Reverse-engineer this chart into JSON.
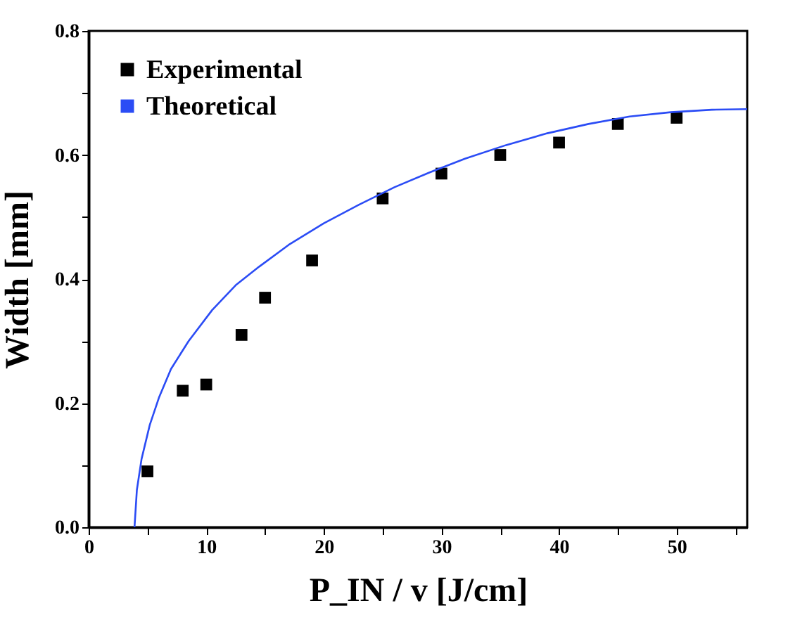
{
  "chart_data": {
    "type": "scatter",
    "xlabel": "P_IN / v [J/cm]",
    "ylabel": "Width [mm]",
    "xlim": [
      0,
      56
    ],
    "ylim": [
      0,
      0.8
    ],
    "xticks": [
      0,
      {
        "value": 5,
        "label": null
      },
      10,
      {
        "value": 15,
        "label": null
      },
      20,
      {
        "value": 25,
        "label": null
      },
      30,
      {
        "value": 35,
        "label": null
      },
      40,
      {
        "value": 45,
        "label": null
      },
      50,
      {
        "value": 55,
        "label": null
      }
    ],
    "yticks": [
      {
        "value": 0,
        "label": "0.0"
      },
      {
        "value": 0.1,
        "label": null
      },
      0.2,
      {
        "value": 0.3,
        "label": null
      },
      0.4,
      {
        "value": 0.5,
        "label": null
      },
      0.6,
      {
        "value": 0.7,
        "label": null
      },
      0.8
    ],
    "legend": "top left",
    "grid": false,
    "marker": "square",
    "series": [
      {
        "name": "Experimental",
        "color": "#000000",
        "x": [
          5,
          8,
          10,
          13,
          15,
          19,
          25,
          30,
          35,
          40,
          45,
          50
        ],
        "values": [
          0.09,
          0.22,
          0.23,
          0.31,
          0.37,
          0.43,
          0.53,
          0.57,
          0.6,
          0.62,
          0.65,
          0.66
        ]
      },
      {
        "name": "Theoretical",
        "type": "line",
        "marker": "none",
        "color": "#2b4cf5",
        "x": [
          3.9,
          4.1,
          4.5,
          5.2,
          6.0,
          7.0,
          8.5,
          10.5,
          12.5,
          14.5,
          17,
          20,
          23,
          26,
          29,
          32,
          35.5,
          39,
          42.5,
          46,
          49.5,
          53,
          56
        ],
        "values": [
          0,
          0.06,
          0.11,
          0.165,
          0.21,
          0.255,
          0.3,
          0.35,
          0.39,
          0.42,
          0.455,
          0.49,
          0.52,
          0.548,
          0.572,
          0.594,
          0.616,
          0.635,
          0.65,
          0.662,
          0.669,
          0.673,
          0.674
        ]
      }
    ]
  }
}
